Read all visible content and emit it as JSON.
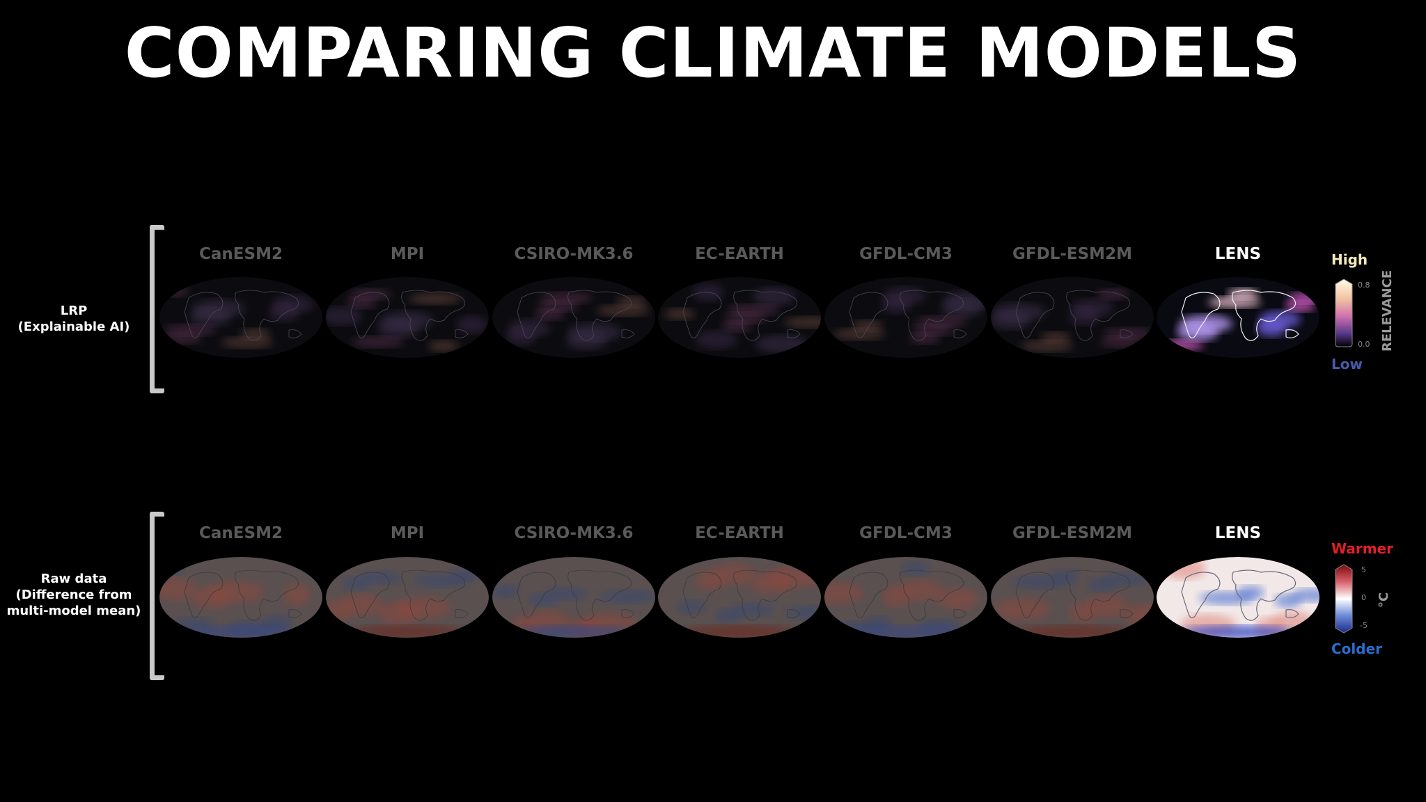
{
  "title": "COMPARING CLIMATE MODELS",
  "models": [
    "CanESM2",
    "MPI",
    "CSIRO-MK3.6",
    "EC-EARTH",
    "GFDL-CM3",
    "GFDL-ESM2M",
    "LENS"
  ],
  "highlighted_model": "LENS",
  "rows": {
    "lrp": {
      "label_line1": "LRP",
      "label_line2": "(Explainable AI)",
      "legend": {
        "high_label": "High",
        "low_label": "Low",
        "tick_max": "0.8",
        "tick_min": "0.0",
        "axis_label": "RELEVANCE",
        "high_color": "#f4e9b8",
        "low_color": "#4a58a8"
      }
    },
    "raw": {
      "label_line1": "Raw data",
      "label_line2": "(Difference from",
      "label_line3": "multi-model mean)",
      "legend": {
        "high_label": "Warmer",
        "low_label": "Colder",
        "tick_max": "5",
        "tick_mid": "0",
        "tick_min": "-5",
        "axis_label": "°C",
        "high_color": "#e0202a",
        "low_color": "#2a6ed0"
      }
    }
  },
  "colors": {
    "background": "#000000",
    "bracket": "#c9c9c9",
    "dim_model_label": "#5a5a5a",
    "highlight_model_label": "#ffffff"
  }
}
